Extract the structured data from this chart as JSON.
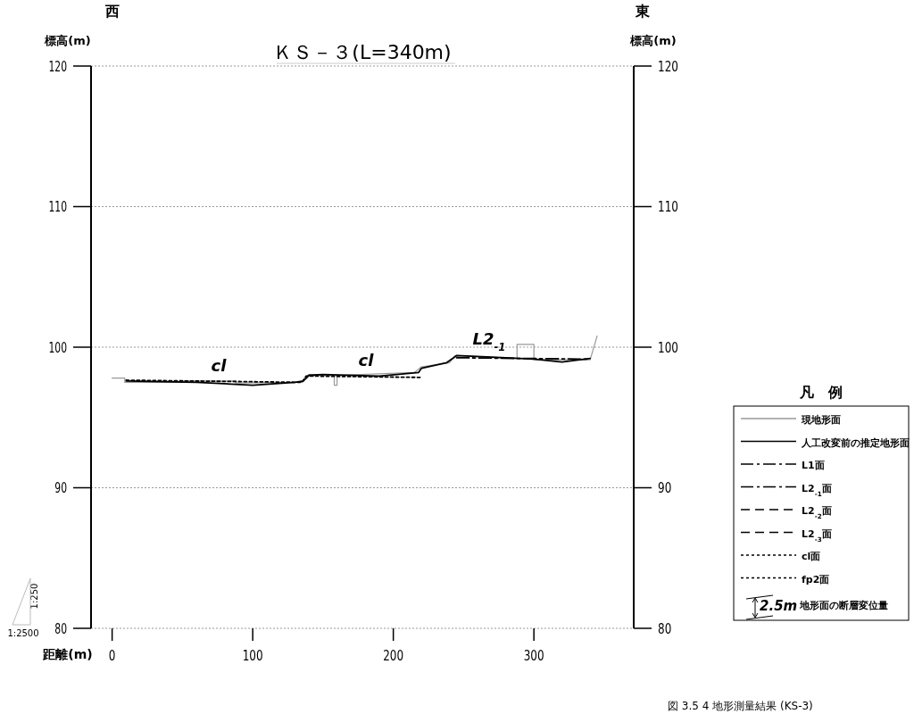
{
  "chart_data": {
    "type": "line",
    "title": "ＫＳ－３(L=340m)",
    "xlabel": "距離(m)",
    "ylabel": "標高(m)",
    "y2label": "標高(m)",
    "legend_title": "凡　例",
    "xlim": [
      -15,
      371
    ],
    "xticks": [
      0,
      100,
      200,
      300
    ],
    "ylim": [
      80,
      120
    ],
    "yticks": [
      80,
      90,
      100,
      110,
      120
    ],
    "y2lim": [
      80,
      120
    ],
    "y2ticks": [
      80,
      90,
      100,
      110,
      120
    ],
    "grid": "y",
    "legend": "right",
    "marker": "none",
    "series": [
      {
        "name": "現地形面",
        "color": "#999999",
        "line_style": "solid",
        "x": [
          0,
          9,
          9,
          50,
          50,
          88,
          88,
          135,
          138,
          140,
          158,
          158,
          160,
          160,
          215,
          220,
          240,
          244,
          288,
          288,
          300,
          300,
          340,
          345
        ],
        "values": [
          97.8,
          97.8,
          97.5,
          97.5,
          97.6,
          97.6,
          97.45,
          97.5,
          97.9,
          98.05,
          98.0,
          97.3,
          97.3,
          98.0,
          98.2,
          98.6,
          98.9,
          99.4,
          99.2,
          100.2,
          100.2,
          99.1,
          99.1,
          100.8
        ]
      },
      {
        "name": "人工改変前の推定地形面",
        "color": "#000000",
        "line_style": "solid",
        "x": [
          10,
          60,
          100,
          130,
          136,
          140,
          150,
          190,
          218,
          220,
          238,
          245,
          270,
          300,
          320,
          340
        ],
        "values": [
          97.6,
          97.5,
          97.3,
          97.5,
          97.6,
          98.0,
          98.05,
          97.95,
          98.2,
          98.5,
          98.9,
          99.4,
          99.3,
          99.15,
          98.95,
          99.2
        ]
      },
      {
        "name": "L1面",
        "color": "#000000",
        "line_style": "dashdot"
      },
      {
        "name": "L2$_{-1}$面",
        "color": "#000000",
        "line_style": "dashdot",
        "x": [
          245,
          340
        ],
        "values": [
          99.25,
          99.15
        ]
      },
      {
        "name": "L2$_{-2}$面",
        "color": "#000000",
        "line_style": "dashed"
      },
      {
        "name": "L2$_{-3}$面",
        "color": "#000000",
        "line_style": "dashed"
      },
      {
        "name": "cl面",
        "color": "#000000",
        "line_style": "dotted",
        "x": [
          10,
          135,
          138,
          220
        ],
        "values": [
          97.65,
          97.5,
          97.95,
          97.85
        ]
      },
      {
        "name": "fp2面",
        "color": "#000000",
        "line_style": "dotted"
      }
    ],
    "annotations": [
      "cl",
      "cl",
      "L2$_{-1}$",
      "西",
      "東",
      "1:250",
      "1:2500",
      "2.5m",
      "地形面の断層変位量",
      "図 3.5 4 地形測量結果 (KS-3)"
    ]
  }
}
